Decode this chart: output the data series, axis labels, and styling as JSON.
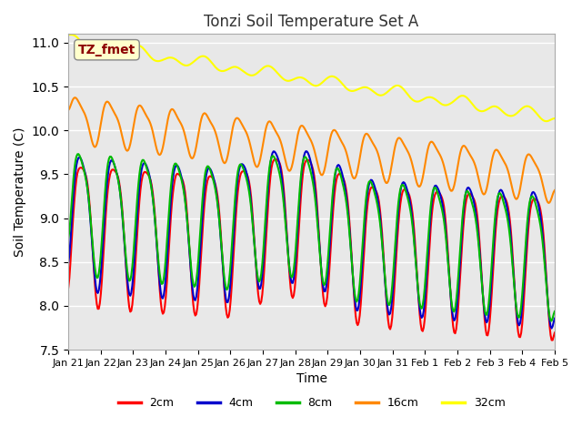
{
  "title": "Tonzi Soil Temperature Set A",
  "xlabel": "Time",
  "ylabel": "Soil Temperature (C)",
  "ylim": [
    7.5,
    11.1
  ],
  "xlim": [
    0,
    15
  ],
  "annotation_text": "TZ_fmet",
  "annotation_color": "#8B0000",
  "annotation_bg": "#FFFFCC",
  "legend_entries": [
    "2cm",
    "4cm",
    "8cm",
    "16cm",
    "32cm"
  ],
  "line_colors": [
    "#FF0000",
    "#0000CC",
    "#00BB00",
    "#FF8800",
    "#FFFF00"
  ],
  "line_widths": [
    1.5,
    1.5,
    1.5,
    1.5,
    1.5
  ],
  "bg_color": "#FFFFFF",
  "plot_bg_color": "#E8E8E8",
  "grid_color": "#FFFFFF",
  "tick_labels": [
    "Jan 21",
    "Jan 22",
    "Jan 23",
    "Jan 24",
    "Jan 25",
    "Jan 26",
    "Jan 27",
    "Jan 28",
    "Jan 29",
    "Jan 30",
    "Jan 31",
    "Feb 1",
    "Feb 2",
    "Feb 3",
    "Feb 4",
    "Feb 5"
  ],
  "yticks": [
    7.5,
    8.0,
    8.5,
    9.0,
    9.5,
    10.0,
    10.5,
    11.0
  ]
}
